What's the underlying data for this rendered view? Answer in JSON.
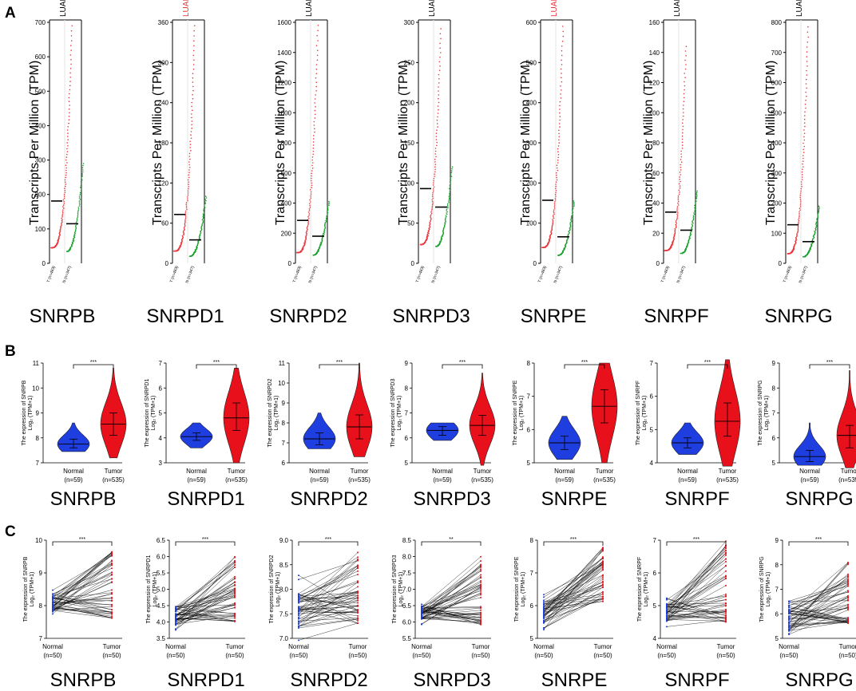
{
  "colors": {
    "tumor": "#e8383d",
    "normal": "#1aa12e",
    "violin_tumor": "#e8101a",
    "violin_normal": "#1f3ee0",
    "line": "#000000",
    "grid": "#bfbfbf"
  },
  "panel_labels": {
    "a": "A",
    "b": "B",
    "c": "C"
  },
  "chart_data": [
    {
      "panel": "A",
      "type": "scatter",
      "ylabel": "Transcripts Per Million (TPM)",
      "dataset_label": "LUAD",
      "xlabels_template": [
        "T (n={t})",
        "N (n={n})"
      ],
      "genes": [
        {
          "gene": "SNRPB",
          "dataset_color": "#000000",
          "n_tumor": 483,
          "n_normal": 347,
          "ymax": 700,
          "yticks": [
            0,
            100,
            200,
            300,
            400,
            500,
            600,
            700
          ],
          "median_tumor": 181,
          "median_normal": 115,
          "max_tumor": 690,
          "max_normal": 290
        },
        {
          "gene": "SNRPD1",
          "dataset_color": "#e8383d",
          "n_tumor": 483,
          "n_normal": 347,
          "ymax": 360,
          "yticks": [
            0,
            60,
            120,
            180,
            240,
            300,
            360
          ],
          "median_tumor": 73,
          "median_normal": 35,
          "max_tumor": 355,
          "max_normal": 100
        },
        {
          "gene": "SNRPD2",
          "dataset_color": "#000000",
          "n_tumor": 483,
          "n_normal": 347,
          "ymax": 1600,
          "yticks": [
            0,
            200,
            400,
            600,
            800,
            1000,
            1200,
            1400,
            1600
          ],
          "median_tumor": 285,
          "median_normal": 180,
          "max_tumor": 1580,
          "max_normal": 410
        },
        {
          "gene": "SNRPD3",
          "dataset_color": "#000000",
          "n_tumor": 483,
          "n_normal": 347,
          "ymax": 300,
          "yticks": [
            0,
            50,
            100,
            150,
            200,
            250,
            300
          ],
          "median_tumor": 93,
          "median_normal": 70,
          "max_tumor": 292,
          "max_normal": 120
        },
        {
          "gene": "SNRPE",
          "dataset_color": "#e8383d",
          "n_tumor": 483,
          "n_normal": 347,
          "ymax": 600,
          "yticks": [
            0,
            100,
            200,
            300,
            400,
            500,
            600
          ],
          "median_tumor": 157,
          "median_normal": 66,
          "max_tumor": 590,
          "max_normal": 155
        },
        {
          "gene": "SNRPF",
          "dataset_color": "#000000",
          "n_tumor": 483,
          "n_normal": 347,
          "ymax": 160,
          "yticks": [
            0,
            20,
            40,
            60,
            80,
            100,
            120,
            140,
            160
          ],
          "median_tumor": 34,
          "median_normal": 22,
          "max_tumor": 144,
          "max_normal": 48
        },
        {
          "gene": "SNRPG",
          "dataset_color": "#000000",
          "n_tumor": 483,
          "n_normal": 347,
          "ymax": 800,
          "yticks": [
            0,
            100,
            200,
            300,
            400,
            500,
            600,
            700,
            800
          ],
          "median_tumor": 128,
          "median_normal": 72,
          "max_tumor": 785,
          "max_normal": 190
        }
      ]
    },
    {
      "panel": "B",
      "type": "violin",
      "categories": [
        "Normal\n(n=59)",
        "Tumor\n(n=535)"
      ],
      "normal_label": "Normal",
      "tumor_label": "Tumor",
      "normal_n": "(n=59)",
      "tumor_n": "(n=535)",
      "ylabel_prefix": "The expression of ",
      "ylabel_line2": "Log₂ (TPM+1)",
      "genes": [
        {
          "gene": "SNRPB",
          "sig": "***",
          "ylim": [
            7,
            11
          ],
          "yticks": [
            7,
            8,
            9,
            10,
            11
          ],
          "normal": {
            "median": 7.75,
            "q1": 7.6,
            "q3": 7.95,
            "min": 7.45,
            "max": 8.6
          },
          "tumor": {
            "median": 8.55,
            "q1": 8.1,
            "q3": 9.0,
            "min": 7.2,
            "max": 10.8
          }
        },
        {
          "gene": "SNRPD1",
          "sig": "***",
          "ylim": [
            3,
            7
          ],
          "yticks": [
            3,
            4,
            5,
            6,
            7
          ],
          "normal": {
            "median": 4.05,
            "q1": 3.9,
            "q3": 4.2,
            "min": 3.6,
            "max": 4.6
          },
          "tumor": {
            "median": 4.8,
            "q1": 4.3,
            "q3": 5.4,
            "min": 3.0,
            "max": 6.8
          }
        },
        {
          "gene": "SNRPD2",
          "sig": "***",
          "ylim": [
            6,
            11
          ],
          "yticks": [
            6,
            7,
            8,
            9,
            10,
            11
          ],
          "normal": {
            "median": 7.2,
            "q1": 6.9,
            "q3": 7.5,
            "min": 6.7,
            "max": 8.5
          },
          "tumor": {
            "median": 7.8,
            "q1": 7.2,
            "q3": 8.4,
            "min": 6.3,
            "max": 11.0
          }
        },
        {
          "gene": "SNRPD3",
          "sig": "***",
          "ylim": [
            5,
            9
          ],
          "yticks": [
            5,
            6,
            7,
            8,
            9
          ],
          "normal": {
            "median": 6.3,
            "q1": 6.1,
            "q3": 6.45,
            "min": 5.9,
            "max": 6.6
          },
          "tumor": {
            "median": 6.5,
            "q1": 6.1,
            "q3": 6.9,
            "min": 4.9,
            "max": 8.6
          }
        },
        {
          "gene": "SNRPE",
          "sig": "***",
          "ylim": [
            5,
            8
          ],
          "yticks": [
            5,
            6,
            7,
            8
          ],
          "normal": {
            "median": 5.6,
            "q1": 5.4,
            "q3": 5.8,
            "min": 5.1,
            "max": 6.4
          },
          "tumor": {
            "median": 6.7,
            "q1": 6.2,
            "q3": 7.2,
            "min": 5.0,
            "max": 8.0
          }
        },
        {
          "gene": "SNRPF",
          "sig": "***",
          "ylim": [
            4,
            7
          ],
          "yticks": [
            4,
            5,
            6,
            7
          ],
          "normal": {
            "median": 4.6,
            "q1": 4.45,
            "q3": 4.75,
            "min": 4.25,
            "max": 5.2
          },
          "tumor": {
            "median": 5.25,
            "q1": 4.8,
            "q3": 5.8,
            "min": 3.9,
            "max": 7.1
          }
        },
        {
          "gene": "SNRPG",
          "sig": "***",
          "ylim": [
            5,
            9
          ],
          "yticks": [
            5,
            6,
            7,
            8,
            9
          ],
          "normal": {
            "median": 5.25,
            "q1": 5.05,
            "q3": 5.5,
            "min": 4.9,
            "max": 6.6
          },
          "tumor": {
            "median": 6.1,
            "q1": 5.6,
            "q3": 6.5,
            "min": 4.8,
            "max": 8.7
          }
        }
      ]
    },
    {
      "panel": "C",
      "type": "paired-line",
      "categories": [
        "Normal\n(n=50)",
        "Tumor\n(n=50)"
      ],
      "normal_label": "Normal",
      "tumor_label": "Tumor",
      "normal_n": "(n=50)",
      "tumor_n": "(n=50)",
      "ylabel_prefix": "The expression of ",
      "ylabel_line2": "Log₂ (TPM+1)",
      "genes": [
        {
          "gene": "SNRPB",
          "sig": "***",
          "ylim": [
            7,
            10
          ],
          "yticks": [
            7,
            8,
            9,
            10
          ],
          "normal_range": [
            7.6,
            8.6
          ],
          "tumor_range": [
            7.2,
            10.0
          ]
        },
        {
          "gene": "SNRPD1",
          "sig": "***",
          "ylim": [
            3.5,
            6.5
          ],
          "yticks": [
            3.5,
            4.0,
            4.5,
            5.0,
            5.5,
            6.0,
            6.5
          ],
          "normal_range": [
            3.7,
            4.7
          ],
          "tumor_range": [
            3.6,
            6.3
          ]
        },
        {
          "gene": "SNRPD2",
          "sig": "***",
          "ylim": [
            7.0,
            9.0
          ],
          "yticks": [
            7.0,
            7.5,
            8.0,
            8.5,
            9.0
          ],
          "normal_range": [
            6.9,
            8.3
          ],
          "tumor_range": [
            7.0,
            9.0
          ]
        },
        {
          "gene": "SNRPD3",
          "sig": "**",
          "ylim": [
            5.5,
            8.5
          ],
          "yticks": [
            5.5,
            6.0,
            6.5,
            7.0,
            7.5,
            8.0,
            8.5
          ],
          "normal_range": [
            5.9,
            6.7
          ],
          "tumor_range": [
            5.5,
            8.3
          ]
        },
        {
          "gene": "SNRPE",
          "sig": "***",
          "ylim": [
            5,
            8
          ],
          "yticks": [
            5,
            6,
            7,
            8
          ],
          "normal_range": [
            5.2,
            6.4
          ],
          "tumor_range": [
            5.8,
            8.0
          ]
        },
        {
          "gene": "SNRPF",
          "sig": "***",
          "ylim": [
            4,
            7
          ],
          "yticks": [
            4,
            5,
            6,
            7
          ],
          "normal_range": [
            4.3,
            5.3
          ],
          "tumor_range": [
            4.0,
            7.3
          ]
        },
        {
          "gene": "SNRPG",
          "sig": "***",
          "ylim": [
            5,
            9
          ],
          "yticks": [
            5,
            6,
            7,
            8,
            9
          ],
          "normal_range": [
            4.9,
            6.6
          ],
          "tumor_range": [
            5.1,
            8.5
          ]
        }
      ]
    }
  ]
}
